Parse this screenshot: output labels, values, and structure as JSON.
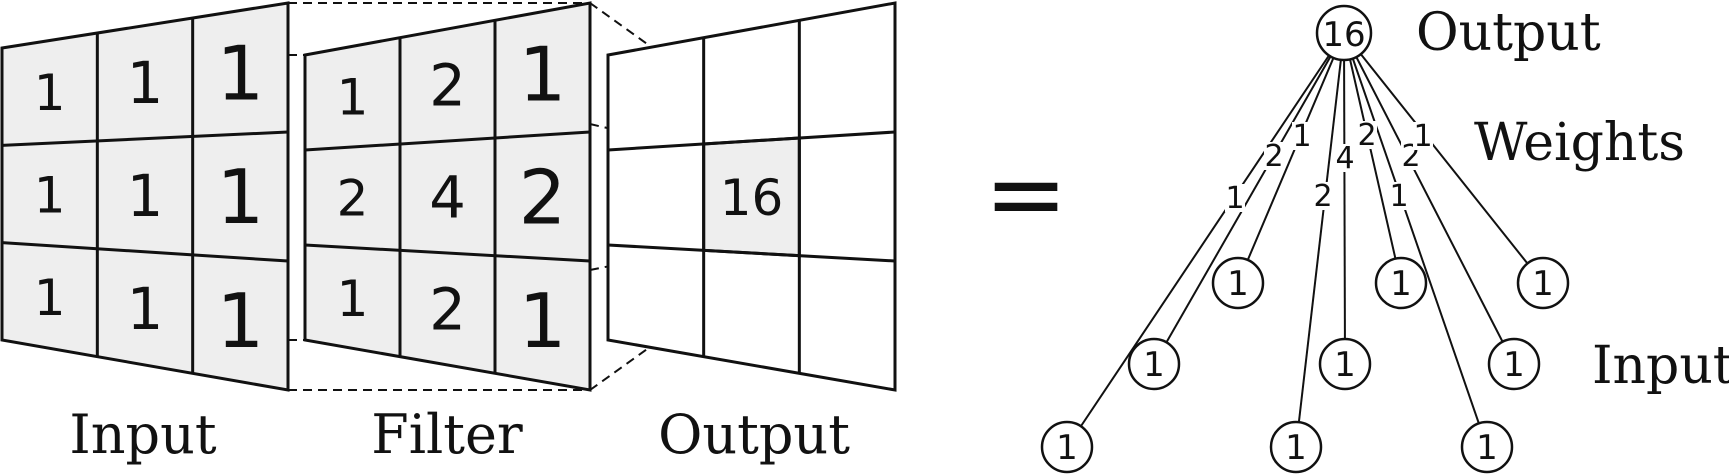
{
  "conv_panels": {
    "input": {
      "label": "Input",
      "fill": "#eeeeee",
      "cells": [
        [
          "1",
          "1",
          "1"
        ],
        [
          "1",
          "1",
          "1"
        ],
        [
          "1",
          "1",
          "1"
        ]
      ]
    },
    "filter": {
      "label": "Filter",
      "fill": "#eeeeee",
      "cells": [
        [
          "1",
          "2",
          "1"
        ],
        [
          "2",
          "4",
          "2"
        ],
        [
          "1",
          "2",
          "1"
        ]
      ]
    },
    "output": {
      "label": "Output",
      "fill": "#ffffff",
      "highlight_fill": "#eeeeee",
      "cells": [
        [
          "",
          "",
          ""
        ],
        [
          "",
          "16",
          ""
        ],
        [
          "",
          "",
          ""
        ]
      ]
    }
  },
  "equals_sign": "=",
  "network": {
    "output_node": "16",
    "output_label": "Output",
    "weights_label": "Weights",
    "input_label": "Input",
    "weights": [
      "1",
      "2",
      "1",
      "2",
      "4",
      "2",
      "1",
      "2",
      "1"
    ],
    "input_nodes": [
      "1",
      "1",
      "1",
      "1",
      "1",
      "1",
      "1",
      "1",
      "1"
    ]
  }
}
